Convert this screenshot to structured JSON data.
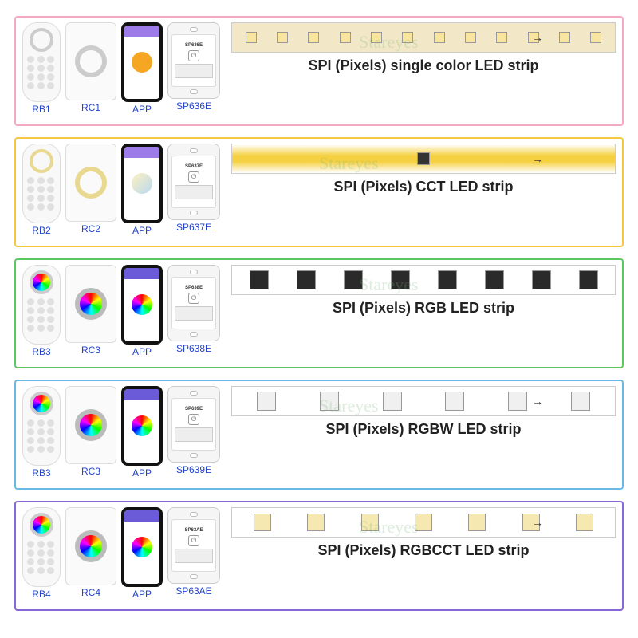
{
  "rows": [
    {
      "border_color": "#f4a8c4",
      "remote_label": "RB1",
      "panel_label": "RC1",
      "app_label": "APP",
      "controller_label": "SP636E",
      "controller_model": "SP636E",
      "strip_title": "SPI (Pixels) single color LED strip",
      "phone_header_color": "#9d7be8",
      "phone_circle_bg": "#f5a623",
      "wheel_style": "mono",
      "wheel_border": "#cccccc",
      "strip_bg": "#f2e8c8",
      "led_bg": "#f8e6a0",
      "led_count": 12,
      "led_size": 14
    },
    {
      "border_color": "#f5c842",
      "remote_label": "RB2",
      "panel_label": "RC2",
      "app_label": "APP",
      "controller_label": "SP637E",
      "controller_model": "SP637E",
      "strip_title": "SPI (Pixels) CCT LED strip",
      "phone_header_color": "#9d7be8",
      "phone_circle_bg": "linear-gradient(135deg,#fff2c0,#b8d8f0)",
      "wheel_style": "cct",
      "wheel_border": "#e8d890",
      "strip_bg": "linear-gradient(#fff,#f5d040 40%,#f5d040 60%,#fff)",
      "led_bg": "#333333",
      "led_count": 1,
      "led_size": 16
    },
    {
      "border_color": "#5cc860",
      "remote_label": "RB3",
      "panel_label": "RC3",
      "app_label": "APP",
      "controller_label": "SP638E",
      "controller_model": "SP638E",
      "strip_title": "SPI (Pixels) RGB LED strip",
      "phone_header_color": "#6b5bd8",
      "phone_circle_bg": "conic-gradient(red,yellow,lime,cyan,blue,magenta,red)",
      "wheel_style": "rgb",
      "wheel_border": "transparent",
      "strip_bg": "#ffffff",
      "led_bg": "#2a2a2a",
      "led_count": 8,
      "led_size": 24
    },
    {
      "border_color": "#6bb8e8",
      "remote_label": "RB3",
      "panel_label": "RC3",
      "app_label": "APP",
      "controller_label": "SP639E",
      "controller_model": "SP639E",
      "strip_title": "SPI (Pixels) RGBW LED strip",
      "phone_header_color": "#6b5bd8",
      "phone_circle_bg": "conic-gradient(red,yellow,lime,cyan,blue,magenta,red)",
      "wheel_style": "rgb",
      "wheel_border": "transparent",
      "strip_bg": "#ffffff",
      "led_bg": "#f0f0f0",
      "led_count": 6,
      "led_size": 24
    },
    {
      "border_color": "#8868d8",
      "remote_label": "RB4",
      "panel_label": "RC4",
      "app_label": "APP",
      "controller_label": "SP63AE",
      "controller_model": "SP63AE",
      "strip_title": "SPI (Pixels) RGBCCT LED strip",
      "phone_header_color": "#6b5bd8",
      "phone_circle_bg": "conic-gradient(red,yellow,lime,cyan,blue,magenta,red)",
      "wheel_style": "rgb",
      "wheel_border": "transparent",
      "strip_bg": "#ffffff",
      "led_bg": "#f5e8b0",
      "led_count": 7,
      "led_size": 22
    }
  ],
  "watermark_text": "Stareyes"
}
